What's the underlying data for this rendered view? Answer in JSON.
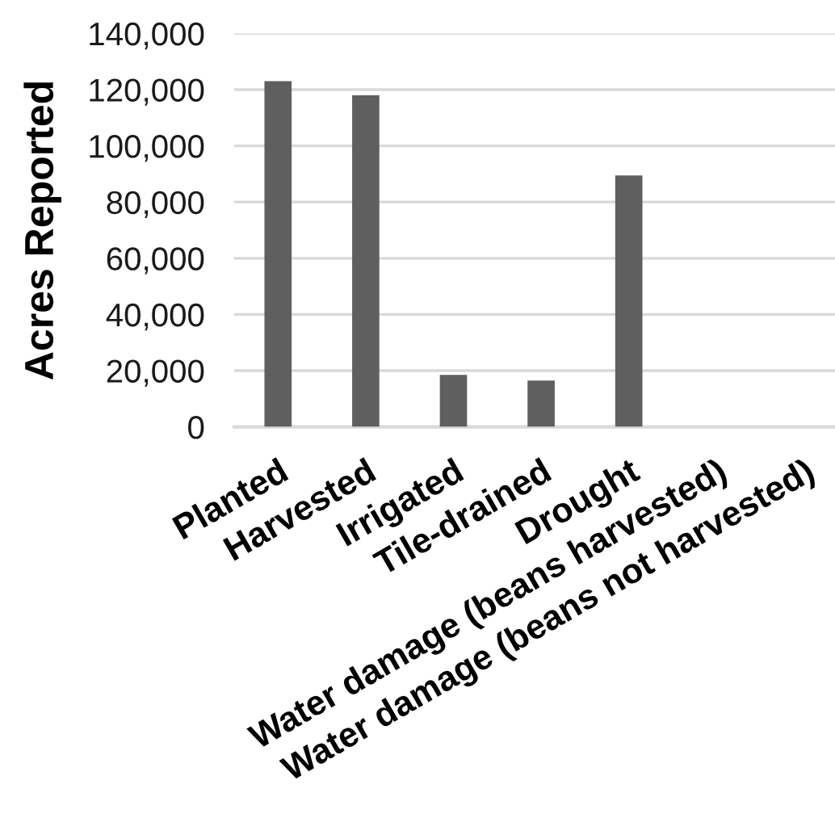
{
  "chart_data": {
    "type": "bar",
    "ylabel": "Acres Reported",
    "categories": [
      "Planted",
      "Harvested",
      "Irrigated",
      "Tile-drained",
      "Drought",
      "Water damage (beans harvested)",
      "Water damage (beans not harvested)"
    ],
    "values": [
      123000,
      118000,
      18500,
      16500,
      89500,
      0,
      0
    ],
    "color": "#5f5f5f",
    "ylim": [
      0,
      140000
    ],
    "yticks": [
      {
        "value": 0,
        "label": "0"
      },
      {
        "value": 20000,
        "label": "20,000"
      },
      {
        "value": 40000,
        "label": "40,000"
      },
      {
        "value": 60000,
        "label": "60,000"
      },
      {
        "value": 80000,
        "label": "80,000"
      },
      {
        "value": 100000,
        "label": "100,000"
      },
      {
        "value": 120000,
        "label": "120,000"
      },
      {
        "value": 140000,
        "label": "140,000"
      }
    ],
    "grid": "y"
  }
}
